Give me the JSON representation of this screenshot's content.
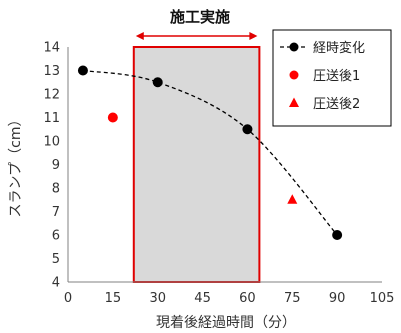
{
  "chart_data": {
    "type": "scatter",
    "xlabel": "現着後経過時間（分）",
    "ylabel": "スランプ（cm）",
    "xlim": [
      0,
      105
    ],
    "ylim": [
      4,
      14
    ],
    "xticks": [
      0,
      15,
      30,
      45,
      60,
      75,
      90,
      105
    ],
    "yticks": [
      4,
      5,
      6,
      7,
      8,
      9,
      10,
      11,
      12,
      13,
      14
    ],
    "grid": false,
    "legend_position": "top-right",
    "series": [
      {
        "name": "経時変化",
        "marker": "circle",
        "color": "#000000",
        "line": "dashed",
        "x": [
          5,
          30,
          60,
          90
        ],
        "y": [
          13,
          12.5,
          10.5,
          6
        ]
      },
      {
        "name": "圧送後1",
        "marker": "circle",
        "color": "#ff0000",
        "line": "none",
        "x": [
          15
        ],
        "y": [
          11
        ]
      },
      {
        "name": "圧送後2",
        "marker": "triangle",
        "color": "#ff0000",
        "line": "none",
        "x": [
          75
        ],
        "y": [
          7.5
        ]
      }
    ],
    "highlight": {
      "label": "施工実施",
      "x_range": [
        22,
        64
      ],
      "fill": "#d9d9d9",
      "stroke": "#e00000"
    }
  }
}
